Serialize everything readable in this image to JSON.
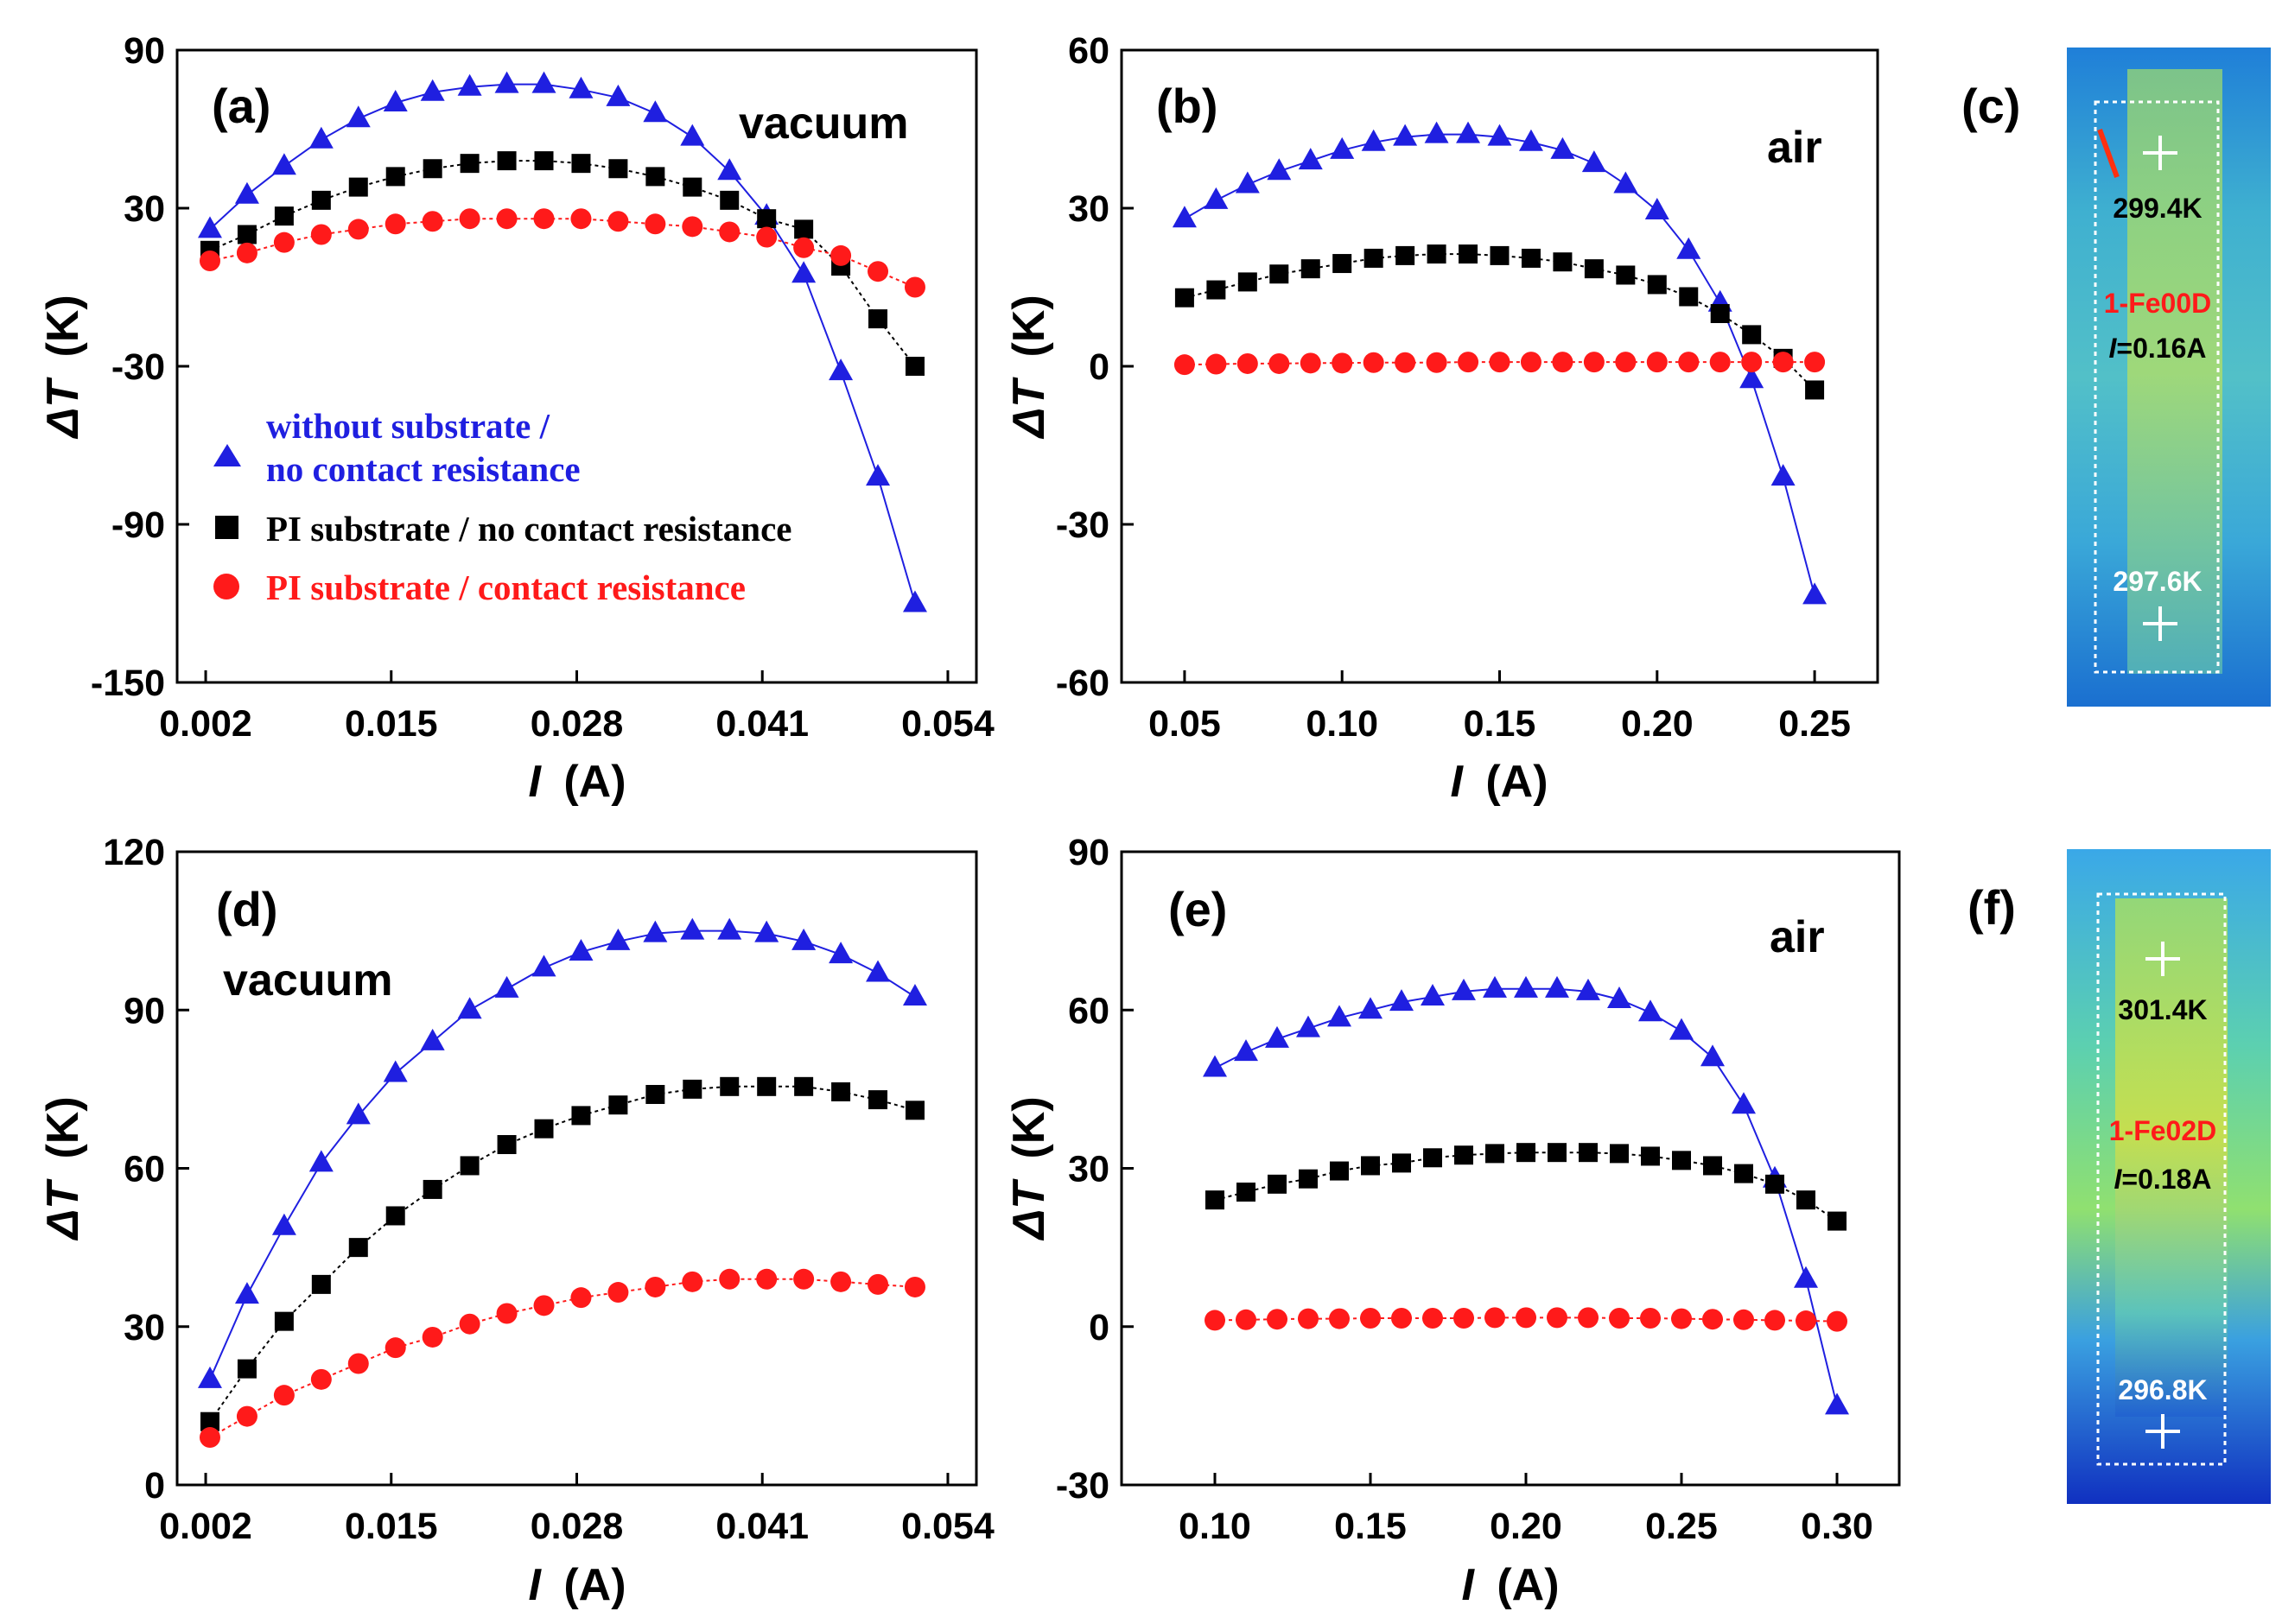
{
  "chart_data": [
    {
      "type": "line",
      "panel_label": "(a)",
      "condition": "vacuum",
      "xlabel": "I",
      "xunit": "(A)",
      "ylabel": "ΔT",
      "yunit": "(K)",
      "xlim": [
        0.0,
        0.056
      ],
      "ylim": [
        -150,
        90
      ],
      "xticks": [
        0.002,
        0.015,
        0.028,
        0.041,
        0.054
      ],
      "xtick_labels": [
        "0.002",
        "0.015",
        "0.028",
        "0.041",
        "0.054"
      ],
      "yticks": [
        -150,
        -90,
        -30,
        30,
        90
      ],
      "ytick_labels": [
        "-150",
        "-90",
        "-30",
        "30",
        "90"
      ],
      "legend": [
        {
          "series": 0,
          "lines": [
            "without substrate /",
            "no contact resistance"
          ]
        },
        {
          "series": 1,
          "lines": [
            "PI substrate / no contact resistance"
          ]
        },
        {
          "series": 2,
          "lines": [
            "PI substrate / contact resistance"
          ]
        }
      ],
      "x": [
        0.0023,
        0.0049,
        0.0075,
        0.0101,
        0.0127,
        0.0153,
        0.0179,
        0.0205,
        0.0231,
        0.0257,
        0.0283,
        0.0309,
        0.0335,
        0.0361,
        0.0387,
        0.0413,
        0.0439,
        0.0465,
        0.0491,
        0.0517
      ],
      "series": [
        {
          "values": [
            22,
            35,
            46,
            56,
            64,
            70,
            74,
            76,
            77,
            77,
            75,
            72,
            66,
            57,
            44,
            27,
            5,
            -32,
            -72,
            -120
          ],
          "color": "#1f1fe0",
          "marker": "triangle"
        },
        {
          "values": [
            14,
            20,
            27,
            33,
            38,
            42,
            45,
            47,
            48,
            48,
            47,
            45,
            42,
            38,
            33,
            26,
            22,
            8,
            -12,
            -30
          ],
          "color": "#000000",
          "marker": "square"
        },
        {
          "values": [
            10,
            13,
            17,
            20,
            22,
            24,
            25,
            26,
            26,
            26,
            26,
            25,
            24,
            23,
            21,
            19,
            15,
            12,
            6,
            0
          ],
          "color": "#ff1a1a",
          "marker": "circle"
        }
      ]
    },
    {
      "type": "line",
      "panel_label": "(b)",
      "condition": "air",
      "xlabel": "I",
      "xunit": "(A)",
      "ylabel": "ΔT",
      "yunit": "(K)",
      "xlim": [
        0.03,
        0.27
      ],
      "ylim": [
        -60,
        60
      ],
      "xticks": [
        0.05,
        0.1,
        0.15,
        0.2,
        0.25
      ],
      "xtick_labels": [
        "0.05",
        "0.10",
        "0.15",
        "0.20",
        "0.25"
      ],
      "yticks": [
        -60,
        -30,
        0,
        30,
        60
      ],
      "ytick_labels": [
        "-60",
        "-30",
        "0",
        "30",
        "60"
      ],
      "legend": [],
      "x": [
        0.05,
        0.06,
        0.07,
        0.08,
        0.09,
        0.1,
        0.11,
        0.12,
        0.13,
        0.14,
        0.15,
        0.16,
        0.17,
        0.18,
        0.19,
        0.2,
        0.21,
        0.22,
        0.23,
        0.24,
        0.25
      ],
      "series": [
        {
          "values": [
            28,
            31.5,
            34.5,
            37,
            39,
            41,
            42.5,
            43.5,
            44,
            44,
            43.5,
            42.5,
            41,
            38.5,
            34.5,
            29.5,
            22,
            12,
            -2.5,
            -21,
            -43.5
          ],
          "color": "#1f1fe0",
          "marker": "triangle"
        },
        {
          "values": [
            13,
            14.5,
            16,
            17.5,
            18.5,
            19.5,
            20.5,
            21,
            21.3,
            21.3,
            21,
            20.5,
            19.8,
            18.5,
            17.3,
            15.5,
            13.2,
            10,
            6,
            1.5,
            -4.5
          ],
          "color": "#000000",
          "marker": "square"
        },
        {
          "values": [
            0.3,
            0.4,
            0.5,
            0.5,
            0.6,
            0.6,
            0.7,
            0.7,
            0.7,
            0.8,
            0.8,
            0.8,
            0.8,
            0.8,
            0.8,
            0.8,
            0.8,
            0.8,
            0.8,
            0.8,
            0.8
          ],
          "color": "#ff1a1a",
          "marker": "circle"
        }
      ]
    },
    {
      "type": "line",
      "panel_label": "(d)",
      "condition": "vacuum",
      "xlabel": "I",
      "xunit": "(A)",
      "ylabel": "ΔT",
      "yunit": "(K)",
      "xlim": [
        0.0,
        0.056
      ],
      "ylim": [
        0,
        120
      ],
      "xticks": [
        0.002,
        0.015,
        0.028,
        0.041,
        0.054
      ],
      "xtick_labels": [
        "0.002",
        "0.015",
        "0.028",
        "0.041",
        "0.054"
      ],
      "yticks": [
        0,
        30,
        60,
        90,
        120
      ],
      "ytick_labels": [
        "0",
        "30",
        "60",
        "90",
        "120"
      ],
      "legend": [],
      "x": [
        0.0023,
        0.0049,
        0.0075,
        0.0101,
        0.0127,
        0.0153,
        0.0179,
        0.0205,
        0.0231,
        0.0257,
        0.0283,
        0.0309,
        0.0335,
        0.0361,
        0.0387,
        0.0413,
        0.0439,
        0.0465,
        0.0491,
        0.0517
      ],
      "series": [
        {
          "values": [
            20,
            36,
            49,
            61,
            70,
            78,
            84,
            90,
            94,
            98,
            101,
            103,
            104.5,
            105,
            105,
            104.5,
            103,
            100.5,
            97,
            92.5
          ],
          "color": "#1f1fe0",
          "marker": "triangle"
        },
        {
          "values": [
            12,
            22,
            31,
            38,
            45,
            51,
            56,
            60.5,
            64.5,
            67.5,
            70,
            72,
            74,
            75,
            75.5,
            75.5,
            75.5,
            74.5,
            73,
            71
          ],
          "color": "#000000",
          "marker": "square"
        },
        {
          "values": [
            9,
            13,
            17,
            20,
            23,
            26,
            28,
            30.5,
            32.5,
            34,
            35.5,
            36.5,
            37.5,
            38.5,
            39,
            39,
            39,
            38.5,
            38,
            37.5
          ],
          "color": "#ff1a1a",
          "marker": "circle"
        }
      ]
    },
    {
      "type": "line",
      "panel_label": "(e)",
      "condition": "air",
      "xlabel": "I",
      "xunit": "(A)",
      "ylabel": "ΔT",
      "yunit": "(K)",
      "xlim": [
        0.07,
        0.32
      ],
      "ylim": [
        -30,
        90
      ],
      "xticks": [
        0.1,
        0.15,
        0.2,
        0.25,
        0.3
      ],
      "xtick_labels": [
        "0.10",
        "0.15",
        "0.20",
        "0.25",
        "0.30"
      ],
      "yticks": [
        -30,
        0,
        30,
        60,
        90
      ],
      "ytick_labels": [
        "-30",
        "0",
        "30",
        "60",
        "90"
      ],
      "legend": [],
      "x": [
        0.1,
        0.11,
        0.12,
        0.13,
        0.14,
        0.15,
        0.16,
        0.17,
        0.18,
        0.19,
        0.2,
        0.21,
        0.22,
        0.23,
        0.24,
        0.25,
        0.26,
        0.27,
        0.28,
        0.29,
        0.3
      ],
      "series": [
        {
          "values": [
            49,
            52,
            54.5,
            56.5,
            58.5,
            60,
            61.5,
            62.5,
            63.5,
            64,
            64,
            64,
            63.5,
            62,
            59.5,
            56,
            51,
            42,
            28,
            9,
            -15
          ],
          "color": "#1f1fe0",
          "marker": "triangle"
        },
        {
          "values": [
            24,
            25.5,
            27,
            28,
            29.5,
            30.5,
            31,
            32,
            32.5,
            32.8,
            33,
            33,
            33,
            32.8,
            32.3,
            31.5,
            30.5,
            29,
            27,
            24,
            20
          ],
          "color": "#000000",
          "marker": "square"
        },
        {
          "values": [
            1.2,
            1.3,
            1.4,
            1.5,
            1.5,
            1.6,
            1.6,
            1.6,
            1.6,
            1.7,
            1.7,
            1.7,
            1.7,
            1.6,
            1.6,
            1.5,
            1.4,
            1.3,
            1.2,
            1.1,
            1.0
          ],
          "color": "#ff1a1a",
          "marker": "circle"
        }
      ]
    }
  ],
  "thermal_images": [
    {
      "panel_label": "(c)",
      "top_temp": "299.4K",
      "bottom_temp": "297.6K",
      "sample": "1-Fe00D",
      "current_prefix": "I",
      "current_value": "=0.16A"
    },
    {
      "panel_label": "(f)",
      "top_temp": "301.4K",
      "bottom_temp": "296.8K",
      "sample": "1-Fe02D",
      "current_prefix": "I",
      "current_value": "=0.18A"
    }
  ],
  "colors": {
    "blue_series": "#1f1fe0",
    "black_series": "#000000",
    "red_series": "#ff1a1a",
    "sample_label": "#ff1a1a"
  }
}
